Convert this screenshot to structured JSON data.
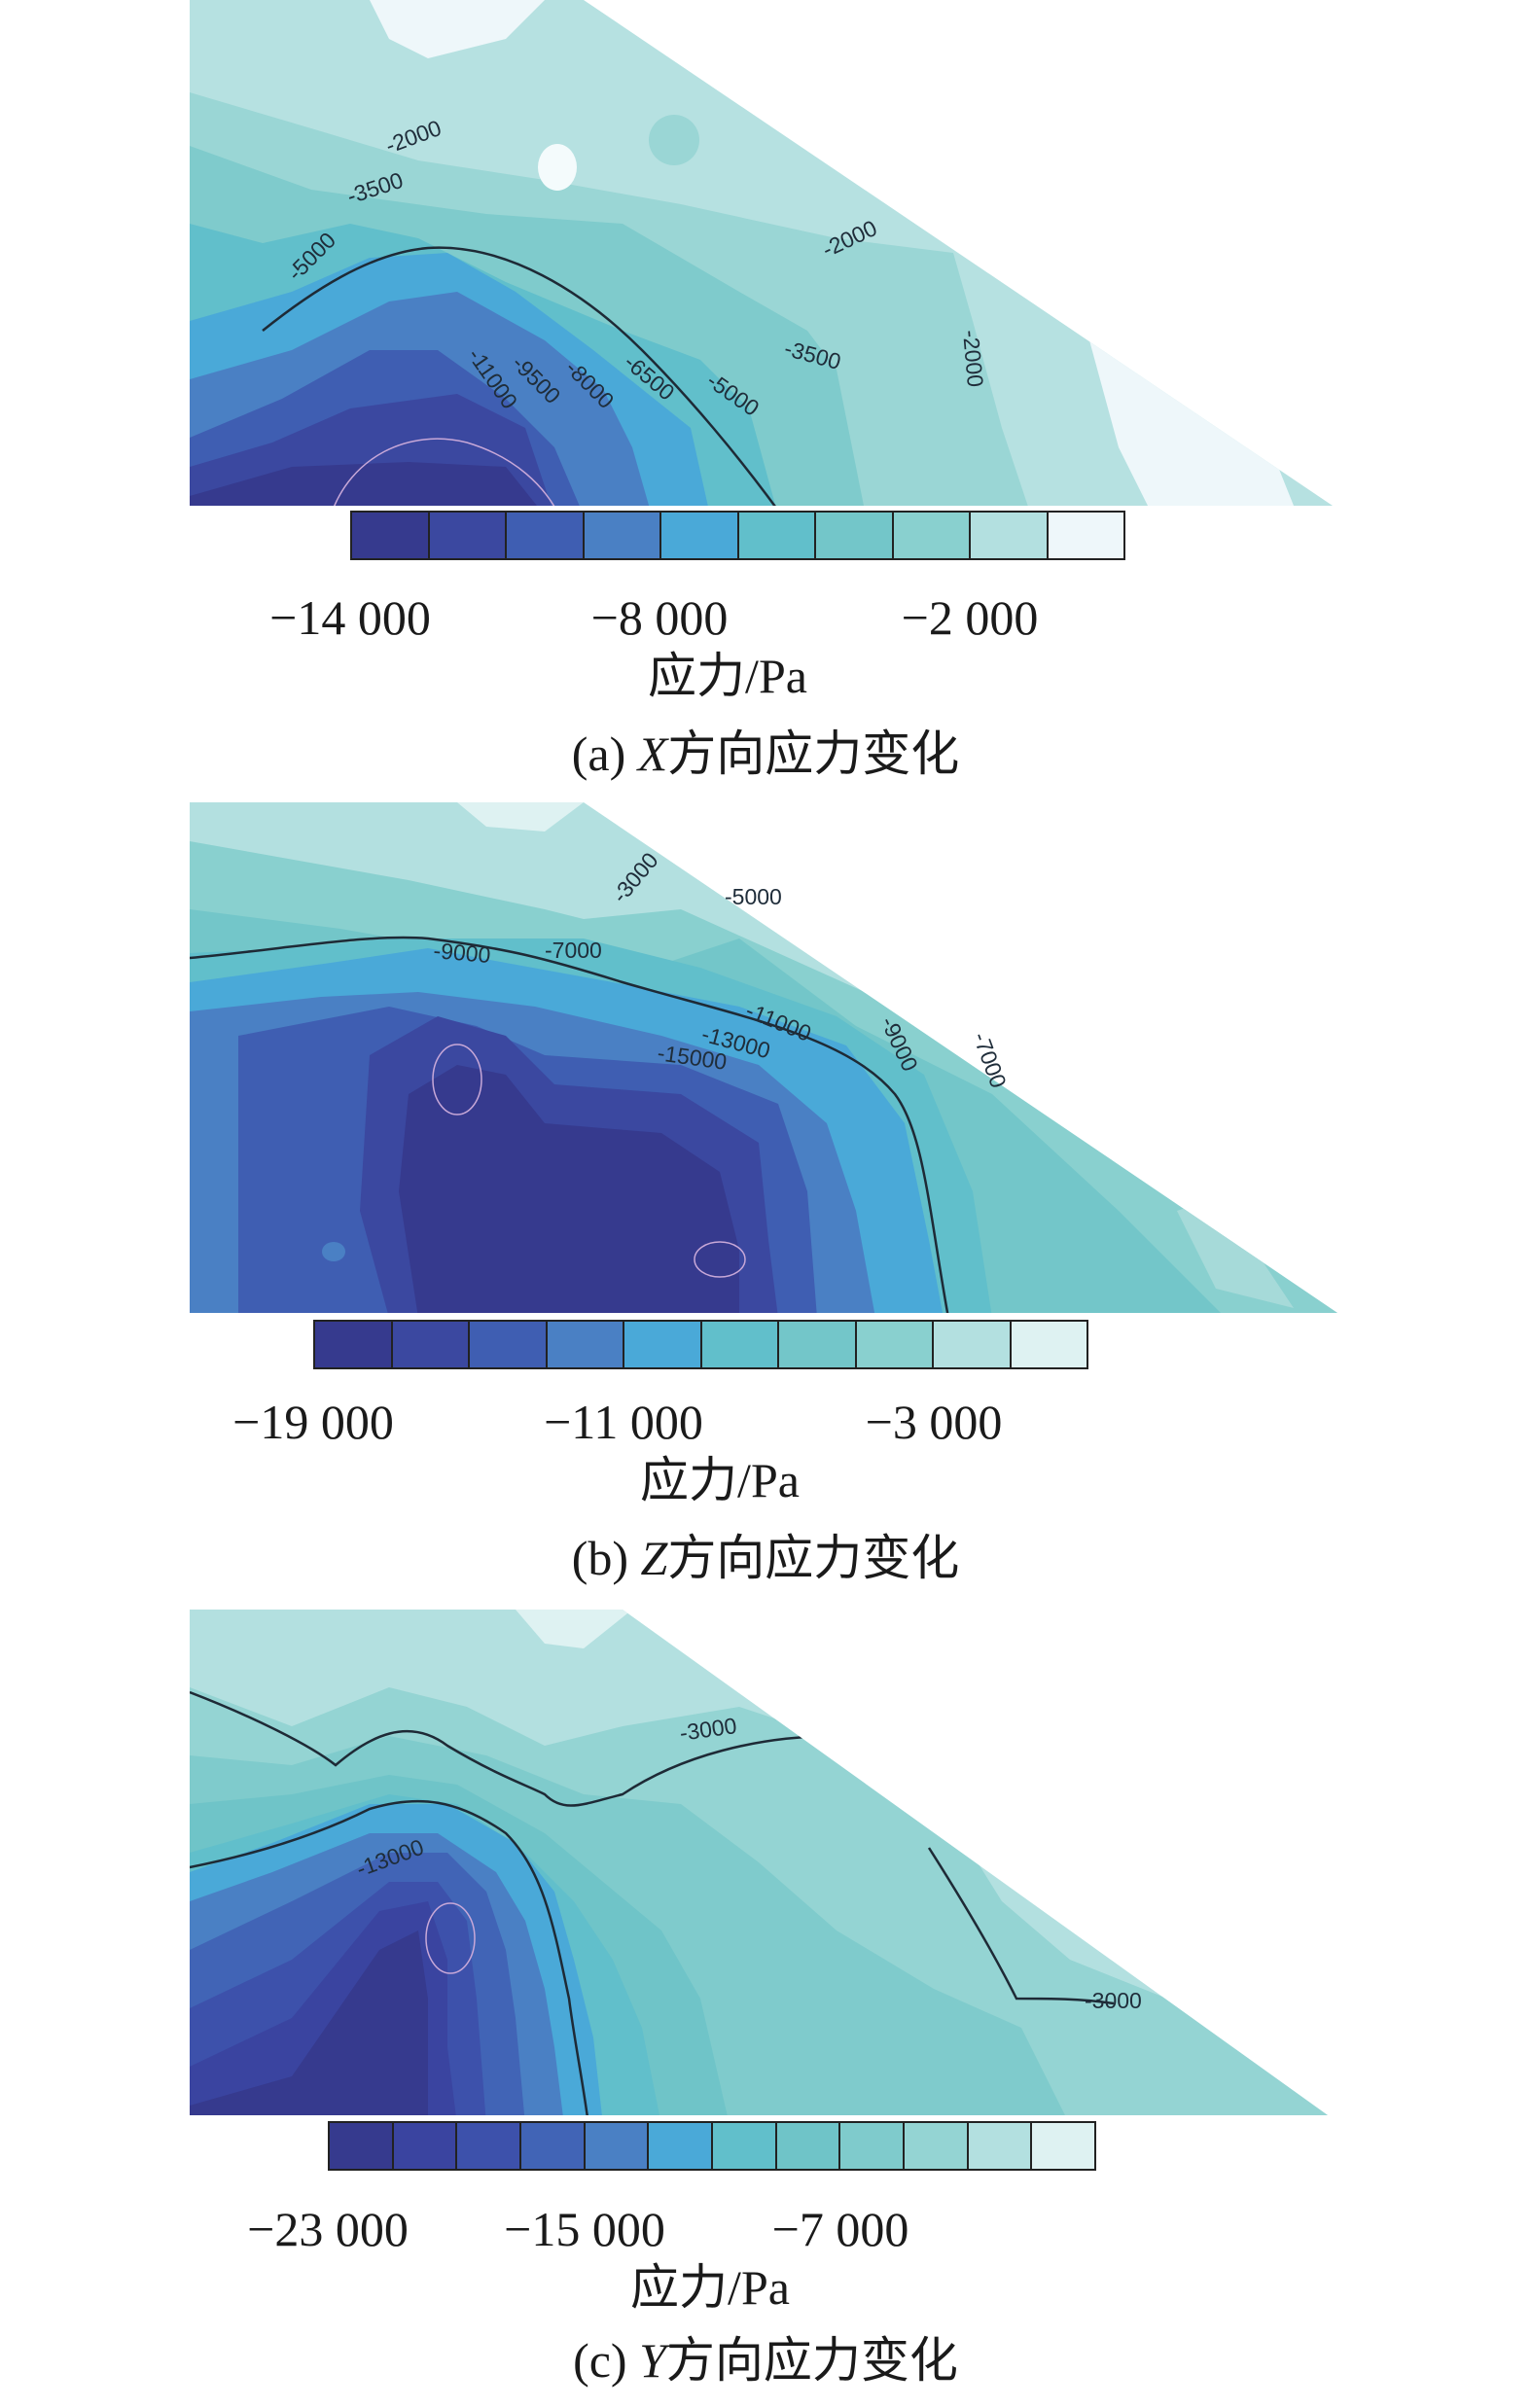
{
  "panels": [
    {
      "id": "a",
      "caption_prefix": "(a)",
      "caption_var": "X",
      "caption_suffix": "方向应力变化",
      "unit_label": "应力/Pa",
      "colorbar_ticks": [
        "−14 000",
        "−8 000",
        "−2 000"
      ],
      "colorbar_colors": [
        "#363a8e",
        "#3b48a0",
        "#3f5eb2",
        "#4a80c4",
        "#4aa9d8",
        "#61bfcb",
        "#73c6c9",
        "#89d0cf",
        "#b3e0e0",
        "#eef7fa"
      ]
    },
    {
      "id": "b",
      "caption_prefix": "(b)",
      "caption_var": "Z",
      "caption_suffix": "方向应力变化",
      "unit_label": "应力/Pa",
      "colorbar_ticks": [
        "−19 000",
        "−11 000",
        "−3 000"
      ],
      "colorbar_colors": [
        "#363a8e",
        "#3b48a0",
        "#3f5eb2",
        "#4a80c4",
        "#4aa9d8",
        "#61bfcb",
        "#73c6c9",
        "#89d0cf",
        "#b3e0e0",
        "#def2f2"
      ]
    },
    {
      "id": "c",
      "caption_prefix": "(c)",
      "caption_var": "Y",
      "caption_suffix": "方向应力变化",
      "unit_label": "应力/Pa",
      "colorbar_ticks": [
        "−23 000",
        "−15 000",
        "−7 000"
      ],
      "colorbar_colors": [
        "#363a8e",
        "#3a44a0",
        "#3d51ab",
        "#4164b6",
        "#4a80c4",
        "#4aa9d8",
        "#61bfcb",
        "#6fc4c8",
        "#7fcbcc",
        "#94d4d3",
        "#b3e0e0",
        "#def2f2"
      ]
    }
  ],
  "chart_data": [
    {
      "type": "heatmap",
      "title": "(a) X方向应力变化",
      "colorbar_label": "应力/Pa",
      "colorbar_ticks": [
        -14000,
        -8000,
        -2000
      ],
      "contour_labels": [
        "-2000",
        "-3500",
        "-5000",
        "-2000",
        "-3500",
        "-5000",
        "-6500",
        "-8000",
        "-9500",
        "-11000",
        "-2000"
      ]
    },
    {
      "type": "heatmap",
      "title": "(b) Z方向应力变化",
      "colorbar_label": "应力/Pa",
      "colorbar_ticks": [
        -19000,
        -11000,
        -3000
      ],
      "contour_labels": [
        "-3000",
        "-5000",
        "-9000",
        "-7000",
        "-11000",
        "-13000",
        "-15000",
        "-9000",
        "-7000"
      ]
    },
    {
      "type": "heatmap",
      "title": "(c) Y方向应力变化",
      "colorbar_label": "应力/Pa",
      "colorbar_ticks": [
        -23000,
        -15000,
        -7000
      ],
      "contour_labels": [
        "-3000",
        "-13000",
        "-3000"
      ]
    }
  ]
}
